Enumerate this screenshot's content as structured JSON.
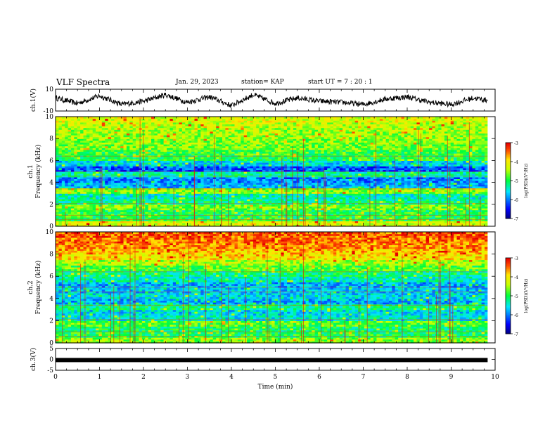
{
  "header": {
    "title": "VLF Spectra",
    "date": "Jan. 29, 2023",
    "station": "station= KAP",
    "start": "start  UT  =   7 : 20 : 1"
  },
  "chart_data": [
    {
      "type": "line",
      "ylabel": "ch.1(V)",
      "ylim": [
        -10,
        10
      ],
      "yticks": [
        "10",
        "-10"
      ],
      "xlim": [
        0,
        10
      ],
      "x_end": 9.83,
      "description_of_values": "approx envelope centre of waveform",
      "x": [
        0.0,
        0.5,
        1.0,
        1.5,
        2.0,
        2.5,
        3.0,
        3.5,
        4.0,
        4.5,
        5.0,
        5.5,
        6.0,
        6.5,
        7.0,
        7.5,
        8.0,
        8.5,
        9.0,
        9.5,
        9.8
      ],
      "y": [
        2,
        -3,
        4,
        -4,
        -1,
        5,
        -2,
        3,
        -5,
        5,
        -3,
        2,
        -1,
        -2,
        -4,
        1,
        3,
        -2,
        -4,
        2,
        0
      ]
    },
    {
      "type": "heatmap",
      "ylabel_line1": "ch.1",
      "ylabel_line2": "Frequency (kHz)",
      "ylim": [
        0,
        10
      ],
      "yticks": [
        "0",
        "2",
        "4",
        "6",
        "8",
        "10"
      ],
      "xlim": [
        0,
        10
      ],
      "x_end": 9.83,
      "colorbar": {
        "label": "log(PSD)(V²/Hz)",
        "range": [
          -7,
          -3
        ],
        "ticks": [
          "-3",
          "-4",
          "-5",
          "-6",
          "-7"
        ]
      },
      "freq_levels_kHz": [
        0.5,
        1,
        1.5,
        2,
        2.5,
        3,
        3.5,
        4,
        4.5,
        5,
        5.5,
        6,
        6.5,
        7,
        7.5,
        8,
        8.5,
        9,
        9.5,
        10
      ],
      "log_psd_profile": [
        -4.2,
        -5.0,
        -5.0,
        -4.7,
        -5.2,
        -5.4,
        -4.6,
        -5.8,
        -6.0,
        -5.3,
        -6.2,
        -5.6,
        -5.0,
        -4.9,
        -4.7,
        -4.6,
        -4.5,
        -4.5,
        -4.4,
        -4.2
      ]
    },
    {
      "type": "heatmap",
      "ylabel_line1": "ch.2",
      "ylabel_line2": "Frequency (kHz)",
      "ylim": [
        0,
        10
      ],
      "yticks": [
        "0",
        "2",
        "4",
        "6",
        "8",
        "10"
      ],
      "xlim": [
        0,
        10
      ],
      "x_end": 9.83,
      "colorbar": {
        "label": "log(PSD)(V²/Hz)",
        "range": [
          -7,
          -3
        ],
        "ticks": [
          "-3",
          "-4",
          "-5",
          "-6",
          "-7"
        ]
      },
      "freq_levels_kHz": [
        0.5,
        1,
        1.5,
        2,
        2.5,
        3,
        3.5,
        4,
        4.5,
        5,
        5.5,
        6,
        6.5,
        7,
        7.5,
        8,
        8.5,
        9,
        9.5,
        10
      ],
      "log_psd_profile": [
        -4.6,
        -5.0,
        -5.1,
        -4.8,
        -5.5,
        -5.6,
        -5.2,
        -5.8,
        -5.6,
        -5.7,
        -5.8,
        -5.4,
        -5.2,
        -4.8,
        -4.5,
        -4.0,
        -3.8,
        -3.6,
        -3.5,
        -3.4
      ]
    },
    {
      "type": "line",
      "ylabel": "ch.3(V)",
      "ylim": [
        -5,
        5
      ],
      "yticks": [
        "5",
        "0",
        "-5"
      ],
      "xlim": [
        0,
        10
      ],
      "x_end": 9.83,
      "x": [
        0,
        9.83
      ],
      "y": [
        -0.3,
        -0.3
      ],
      "xlabel": "Time (min)",
      "xticks": [
        "0",
        "1",
        "2",
        "3",
        "4",
        "5",
        "6",
        "7",
        "8",
        "9",
        "10"
      ]
    }
  ],
  "colors": {
    "colormap": [
      "#000000",
      "#0000ff",
      "#00ffff",
      "#00ff00",
      "#ffff00",
      "#ff0000",
      "#ffffff"
    ]
  }
}
